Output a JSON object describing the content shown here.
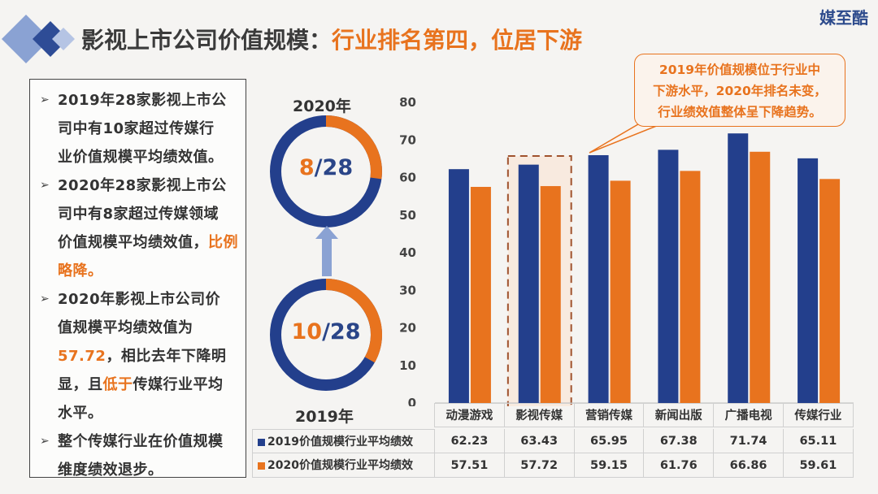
{
  "header": {
    "title_main": "影视上市公司价值规模：",
    "title_accent": "行业排名第四，位居下游",
    "brand": "媒至酷"
  },
  "colors": {
    "navy": "#233f8c",
    "orange": "#e8731e",
    "diamond_light": "#8aa2d3",
    "diamond_dark": "#2e4c96"
  },
  "left_panel": {
    "bullets": [
      {
        "lines": [
          "2019年28家影视上市公",
          "司中有10家超过传媒行",
          "业价值规模平均绩效值。"
        ]
      },
      {
        "lines": [
          "2020年28家影视上市公",
          "司中有8家超过传媒领域",
          "价值规模平均绩效值，"
        ],
        "accent": "比例略降。"
      },
      {
        "parts": [
          "2020年影视上市公司价",
          "值规模平均绩效值为"
        ],
        "accent_num": "57.72",
        "tail": "，相比去年下降明",
        "tail2": "显，且",
        "accent2": "低于",
        "tail3": "传媒行业平均",
        "tail4": "水平。"
      },
      {
        "lines": [
          "整个传媒行业在价值规模",
          "维度绩效退步。"
        ]
      }
    ]
  },
  "donuts": {
    "top": {
      "label": "2020年",
      "num": "8",
      "den": "/28"
    },
    "bottom": {
      "label": "2019年",
      "num": "10",
      "den": "/28"
    }
  },
  "callout": {
    "lines": [
      "2019年价值规模位于行业中",
      "下游水平，2020年排名未变，",
      "行业绩效值整体呈下降趋势。"
    ]
  },
  "chart_data": {
    "type": "bar",
    "categories": [
      "动漫游戏",
      "影视传媒",
      "营销传媒",
      "新闻出版",
      "广播电视",
      "传媒行业"
    ],
    "series": [
      {
        "name": "2019价值规模行业平均绩效",
        "values": [
          62.23,
          63.43,
          65.95,
          67.38,
          71.74,
          65.11
        ],
        "color": "#233f8c"
      },
      {
        "name": "2020价值规模行业平均绩效",
        "values": [
          57.51,
          57.72,
          59.15,
          61.76,
          66.86,
          59.61
        ],
        "color": "#e8731e"
      }
    ],
    "yticks": [
      "0",
      "10",
      "20",
      "30",
      "40",
      "50",
      "60",
      "70",
      "80"
    ],
    "ylim": [
      0,
      80
    ],
    "highlight_category": "影视传媒",
    "grid": false,
    "legend": "table-below"
  }
}
